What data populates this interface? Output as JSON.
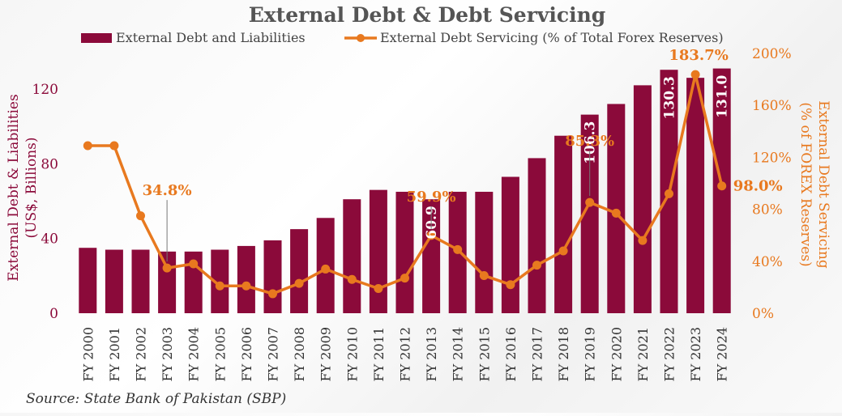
{
  "chart_data": {
    "type": "bar+line",
    "title": "External Debt & Debt Servicing",
    "source": "Source: State Bank of Pakistan (SBP)",
    "categories": [
      "FY 2000",
      "FY 2001",
      "FY 2002",
      "FY 2003",
      "FY 2004",
      "FY 2005",
      "FY 2006",
      "FY 2007",
      "FY 2008",
      "FY 2009",
      "FY 2010",
      "FY 2011",
      "FY 2012",
      "FY 2013",
      "FY 2014",
      "FY 2015",
      "FY 2016",
      "FY 2017",
      "FY 2018",
      "FY 2019",
      "FY 2020",
      "FY 2021",
      "FY 2022",
      "FY 2023",
      "FY 2024"
    ],
    "series": [
      {
        "name": "External Debt and Liabilities",
        "type": "bar",
        "axis": "left",
        "color": "#8b0a3a",
        "values": [
          35,
          34,
          34,
          33,
          33,
          34,
          36,
          39,
          45,
          51,
          61,
          66,
          65,
          61,
          65,
          65,
          73,
          83,
          95,
          106.3,
          112,
          122,
          130.3,
          126,
          131.0
        ]
      },
      {
        "name": "External Debt Servicing (% of Total Forex Reserves)",
        "type": "line",
        "axis": "right",
        "color": "#e8791f",
        "values": [
          129,
          129,
          75,
          34.8,
          38,
          21,
          21,
          15,
          23,
          34,
          26,
          19,
          27,
          59.9,
          49,
          29,
          22,
          37,
          48,
          85.3,
          77,
          56,
          92,
          183.7,
          98.0
        ]
      }
    ],
    "data_labels": {
      "bars": [
        {
          "index": 13,
          "text": "60.9"
        },
        {
          "index": 19,
          "text": "106.3"
        },
        {
          "index": 22,
          "text": "130.3"
        },
        {
          "index": 24,
          "text": "131.0"
        }
      ],
      "line": [
        {
          "index": 3,
          "text": "34.8%"
        },
        {
          "index": 13,
          "text": "59.9%"
        },
        {
          "index": 19,
          "text": "85.3%"
        },
        {
          "index": 23,
          "text": "183.7%"
        },
        {
          "index": 24,
          "text": "98.0%"
        }
      ]
    },
    "y_left": {
      "label_line1": "External Debt & Liabilities",
      "label_line2": "(US$, Billions)",
      "ticks": [
        "0",
        "40",
        "80",
        "120"
      ],
      "tick_values": [
        0,
        40,
        80,
        120
      ],
      "range": [
        0,
        138
      ]
    },
    "y_right": {
      "label_line1": "External Debt Servicing",
      "label_line2": "(% of FOREX Reserves)",
      "ticks": [
        "0%",
        "40%",
        "80%",
        "120%",
        "160%",
        "200%"
      ],
      "tick_values": [
        0,
        40,
        80,
        120,
        160,
        200
      ],
      "range": [
        0,
        200
      ]
    },
    "legend_position": "top",
    "grid": false
  }
}
